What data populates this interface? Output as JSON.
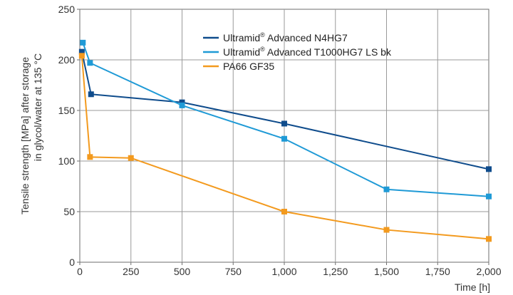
{
  "chart_data": {
    "type": "line",
    "title": "",
    "xlabel": "Time [h]",
    "ylabel_line1": "Tensile strength [MPa] after storage",
    "ylabel_line2": "in glycol/water at 135 °C",
    "xlim": [
      0,
      2000
    ],
    "ylim": [
      0,
      250
    ],
    "x_ticks": [
      0,
      250,
      500,
      750,
      1000,
      1250,
      1500,
      1750,
      2000
    ],
    "x_tick_labels": [
      "0",
      "250",
      "500",
      "750",
      "1,000",
      "1,250",
      "1,500",
      "1,750",
      "2,000"
    ],
    "y_ticks": [
      0,
      50,
      100,
      150,
      200,
      250
    ],
    "y_tick_labels": [
      "0",
      "50",
      "100",
      "150",
      "200",
      "250"
    ],
    "grid": true,
    "legend_position": "top-right",
    "series": [
      {
        "name_main": "Ultramid",
        "name_sup": "®",
        "name_rest": " Advanced N4HG7",
        "color": "#0f4c8c",
        "points": [
          [
            10,
            208
          ],
          [
            55,
            166
          ],
          [
            500,
            158
          ],
          [
            1000,
            137
          ],
          [
            2000,
            92
          ]
        ]
      },
      {
        "name_main": "Ultramid",
        "name_sup": "®",
        "name_rest": " Advanced T1000HG7 LS bk",
        "color": "#1f9ad6",
        "points": [
          [
            15,
            217
          ],
          [
            50,
            197
          ],
          [
            500,
            155
          ],
          [
            1000,
            122
          ],
          [
            1500,
            72
          ],
          [
            2000,
            65
          ]
        ]
      },
      {
        "name_main": "PA66 GF35",
        "name_sup": "",
        "name_rest": "",
        "color": "#f39a1e",
        "points": [
          [
            10,
            204
          ],
          [
            50,
            104
          ],
          [
            250,
            103
          ],
          [
            1000,
            50
          ],
          [
            1500,
            32
          ],
          [
            2000,
            23
          ]
        ]
      }
    ]
  }
}
